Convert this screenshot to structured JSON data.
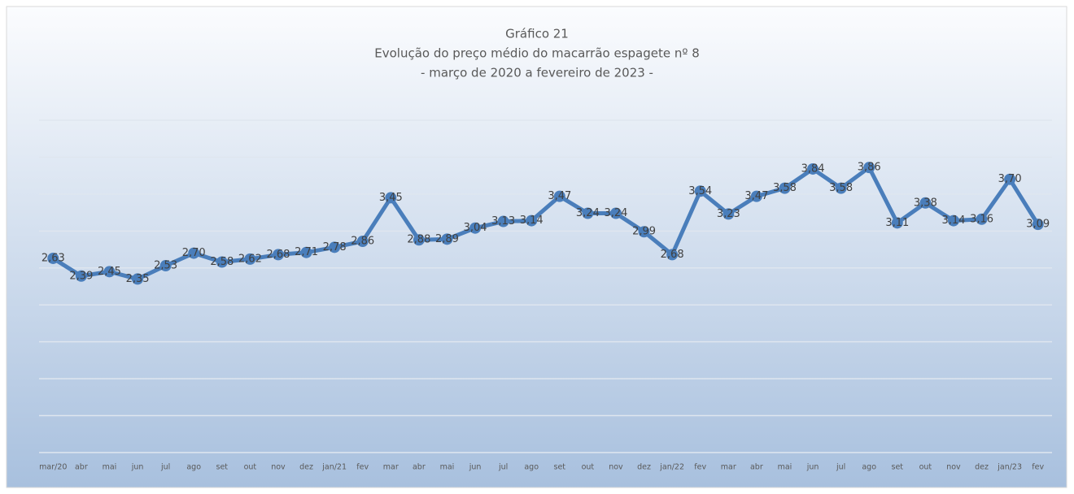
{
  "chart_data": {
    "type": "line",
    "title": "Gráfico 21",
    "subtitle": [
      "Evolução do preço médio do macarrão espagete nº 8",
      "- março de 2020 a fevereiro de 2023 -"
    ],
    "categories": [
      "mar/20",
      "abr",
      "mai",
      "jun",
      "jul",
      "ago",
      "set",
      "out",
      "nov",
      "dez",
      "jan/21",
      "fev",
      "mar",
      "abr",
      "mai",
      "jun",
      "jul",
      "ago",
      "set",
      "out",
      "nov",
      "dez",
      "jan/22",
      "fev",
      "mar",
      "abr",
      "mai",
      "jun",
      "jul",
      "ago",
      "set",
      "out",
      "nov",
      "dez",
      "jan/23",
      "fev"
    ],
    "values": [
      2.63,
      2.39,
      2.45,
      2.35,
      2.53,
      2.7,
      2.58,
      2.62,
      2.68,
      2.71,
      2.78,
      2.86,
      3.45,
      2.88,
      2.89,
      3.04,
      3.13,
      3.14,
      3.47,
      3.24,
      3.24,
      2.99,
      2.68,
      3.54,
      3.23,
      3.47,
      3.58,
      3.84,
      3.58,
      3.86,
      3.11,
      3.38,
      3.14,
      3.16,
      3.7,
      3.09
    ],
    "value_labels": [
      "2,63",
      "2,39",
      "2,45",
      "2,35",
      "2,53",
      "2,70",
      "2,58",
      "2,62",
      "2,68",
      "2,71",
      "2,78",
      "2,86",
      "3,45",
      "2,88",
      "2,89",
      "3,04",
      "3,13",
      "3,14",
      "3,47",
      "3,24",
      "3,24",
      "2,99",
      "2,68",
      "3,54",
      "3,23",
      "3,47",
      "3,58",
      "3,84",
      "3,58",
      "3,86",
      "3,11",
      "3,38",
      "3,14",
      "3,16",
      "3,70",
      "3,09"
    ],
    "color": "#4a7ebb",
    "ylim": [
      0,
      4.5
    ],
    "yticks": [
      0,
      0.5,
      1,
      1.5,
      2,
      2.5,
      3,
      3.5,
      4,
      4.5
    ],
    "grid": true
  }
}
